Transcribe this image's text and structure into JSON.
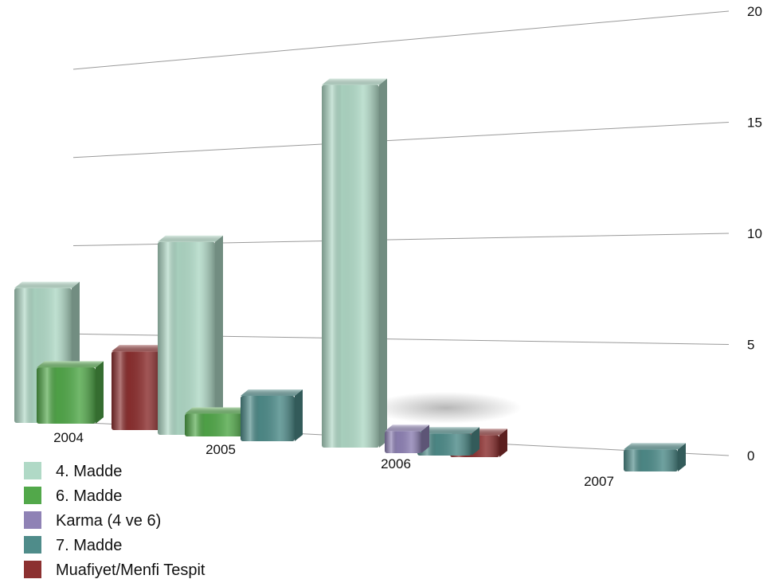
{
  "chart_data": {
    "type": "bar",
    "title": "",
    "xlabel": "",
    "ylabel": "",
    "ylim": [
      0,
      20
    ],
    "yticks": [
      0,
      5,
      10,
      15,
      20
    ],
    "grid": true,
    "legend_position": "bottom-left",
    "categories": [
      "2004",
      "2005",
      "2006",
      "2007"
    ],
    "series": [
      {
        "name": "4. Madde",
        "color": "#b0d9c6",
        "values": [
          6,
          8.5,
          16.5,
          0
        ]
      },
      {
        "name": "6. Madde",
        "color": "#52a84a",
        "values": [
          2.5,
          1,
          0,
          0
        ]
      },
      {
        "name": "Karma (4 ve 6)",
        "color": "#8f82b5",
        "values": [
          0,
          0,
          1,
          0
        ]
      },
      {
        "name": "7. Madde",
        "color": "#4f8c8a",
        "values": [
          0,
          2,
          1,
          1
        ]
      },
      {
        "name": "Muafiyet/Menfi Tespit",
        "color": "#8c3030",
        "values": [
          3.5,
          0,
          1,
          0
        ]
      }
    ]
  }
}
